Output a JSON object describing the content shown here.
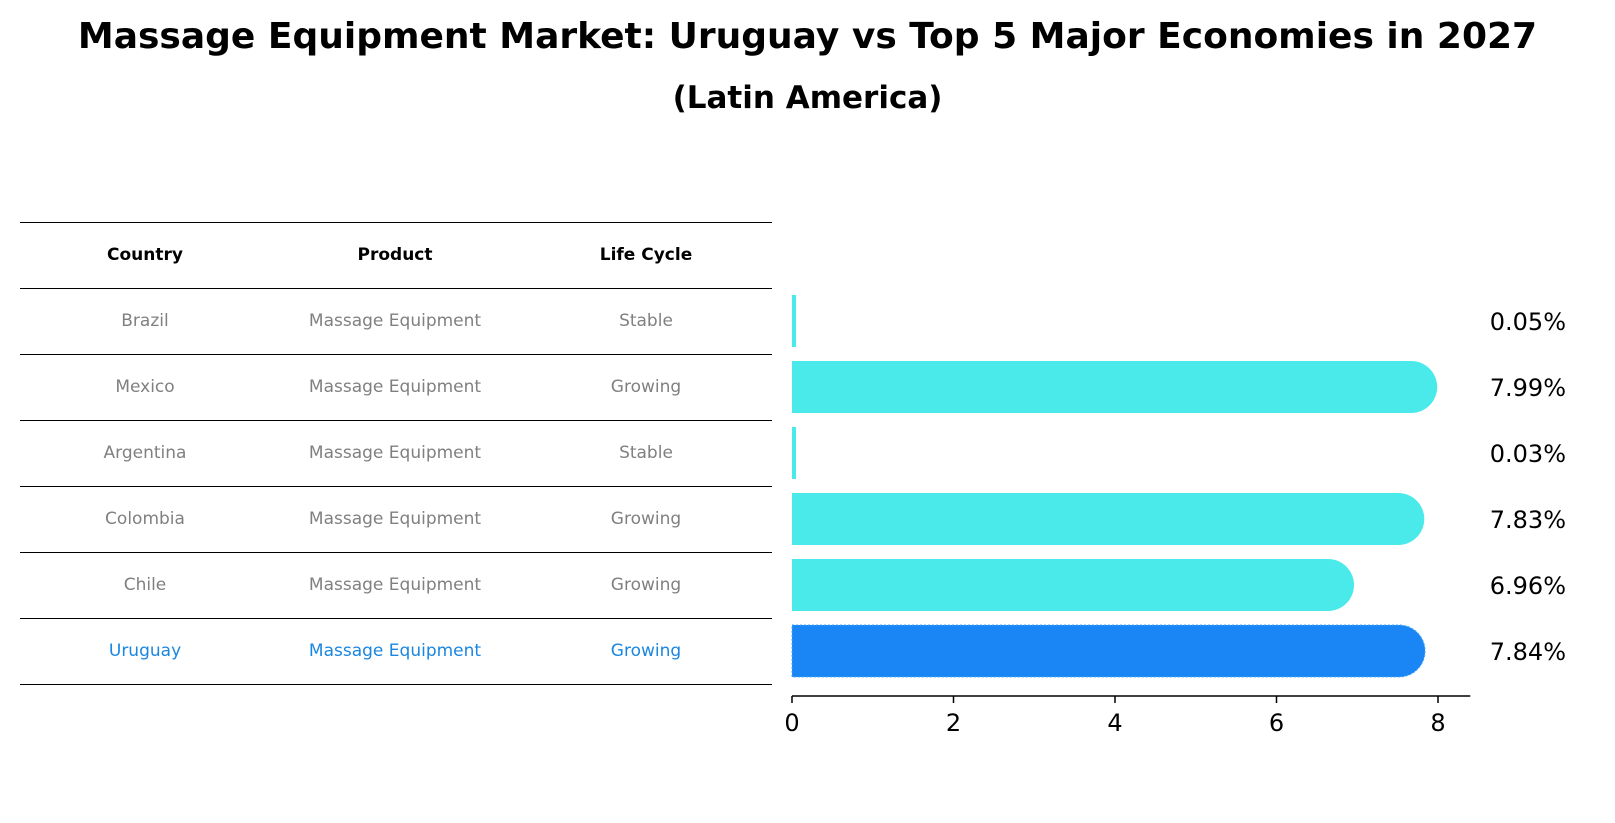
{
  "title": "Massage Equipment Market: Uruguay vs Top 5 Major Economies in 2027",
  "subtitle": "(Latin America)",
  "table": {
    "headers": [
      "Country",
      "Product",
      "Life Cycle"
    ],
    "rows": [
      [
        "Brazil",
        "Massage Equipment",
        "Stable"
      ],
      [
        "Mexico",
        "Massage Equipment",
        "Growing"
      ],
      [
        "Argentina",
        "Massage Equipment",
        "Stable"
      ],
      [
        "Colombia",
        "Massage Equipment",
        "Growing"
      ],
      [
        "Chile",
        "Massage Equipment",
        "Growing"
      ],
      [
        "Uruguay",
        "Massage Equipment",
        "Growing"
      ]
    ],
    "highlight_row": 5
  },
  "colors": {
    "bar": "#4aeaea",
    "highlight": "#1a86f5",
    "highlight_text": "#1a86e0",
    "text_muted": "#808080"
  },
  "chart_data": {
    "type": "bar",
    "orientation": "horizontal",
    "categories": [
      "Brazil",
      "Mexico",
      "Argentina",
      "Colombia",
      "Chile",
      "Uruguay"
    ],
    "values": [
      0.05,
      7.99,
      0.03,
      7.83,
      6.96,
      7.84
    ],
    "value_labels": [
      "0.05%",
      "7.99%",
      "0.03%",
      "7.83%",
      "6.96%",
      "7.84%"
    ],
    "xticks": [
      0,
      2,
      4,
      6,
      8
    ],
    "xtick_labels": [
      "0",
      "2",
      "4",
      "6",
      "8"
    ],
    "xlim": [
      0,
      8.4
    ],
    "highlight": "Uruguay",
    "grid": false
  }
}
